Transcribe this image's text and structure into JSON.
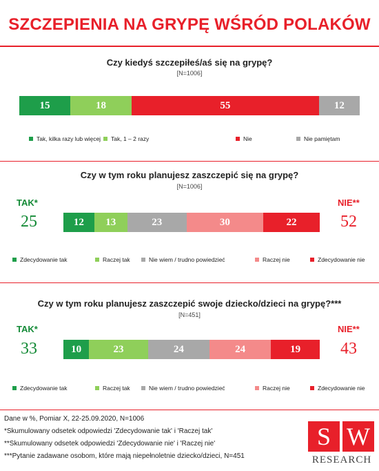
{
  "title": "SZCZEPIENIA NA GRYPĘ WŚRÓD POLAKÓW",
  "colors": {
    "dark_green": "#1e9e4a",
    "light_green": "#8fcf5a",
    "grey": "#a8a8a8",
    "light_red": "#f48a8a",
    "red": "#e8202a",
    "brand_red": "#e8202a"
  },
  "chart_data": [
    {
      "type": "bar",
      "orientation": "horizontal-stacked",
      "title": "Czy kiedyś szczepiłeś/aś się na grypę?",
      "subtitle": "[N=1006]",
      "series": [
        {
          "name": "Tak, kilka razy lub więcej",
          "value": 15,
          "color": "#1e9e4a"
        },
        {
          "name": "Tak, 1 – 2 razy",
          "value": 18,
          "color": "#8fcf5a"
        },
        {
          "name": "Nie",
          "value": 55,
          "color": "#e8202a"
        },
        {
          "name": "Nie pamiętam",
          "value": 12,
          "color": "#a8a8a8"
        }
      ]
    },
    {
      "type": "bar",
      "orientation": "horizontal-stacked",
      "title": "Czy w tym roku planujesz zaszczepić się na grypę?",
      "subtitle": "[N=1006]",
      "left_label": "TAK*",
      "left_value": "25",
      "right_label": "NIE**",
      "right_value": "52",
      "series": [
        {
          "name": "Zdecydowanie tak",
          "value": 12,
          "color": "#1e9e4a"
        },
        {
          "name": "Raczej tak",
          "value": 13,
          "color": "#8fcf5a"
        },
        {
          "name": "Nie wiem / trudno powiedzieć",
          "value": 23,
          "color": "#a8a8a8"
        },
        {
          "name": "Raczej nie",
          "value": 30,
          "color": "#f48a8a"
        },
        {
          "name": "Zdecydowanie nie",
          "value": 22,
          "color": "#e8202a"
        }
      ]
    },
    {
      "type": "bar",
      "orientation": "horizontal-stacked",
      "title": "Czy w tym roku planujesz zaszczepić swoje dziecko/dzieci na grypę?***",
      "subtitle": "[N=451]",
      "left_label": "TAK*",
      "left_value": "33",
      "right_label": "NIE**",
      "right_value": "43",
      "series": [
        {
          "name": "Zdecydowanie tak",
          "value": 10,
          "color": "#1e9e4a"
        },
        {
          "name": "Raczej tak",
          "value": 23,
          "color": "#8fcf5a"
        },
        {
          "name": "Nie wiem / trudno powiedzieć",
          "value": 24,
          "color": "#a8a8a8"
        },
        {
          "name": "Raczej nie",
          "value": 24,
          "color": "#f48a8a"
        },
        {
          "name": "Zdecydowanie nie",
          "value": 19,
          "color": "#e8202a"
        }
      ]
    }
  ],
  "footer": {
    "line1": "Dane w %, Pomiar X, 22-25.09.2020, N=1006",
    "line2": "*Skumulowany odsetek odpowiedzi 'Zdecydowanie tak' i 'Raczej tak'",
    "line3": "**Skumulowany odsetek odpowiedzi 'Zdecydowanie nie' i 'Raczej nie'",
    "line4": "***Pytanie zadawane osobom, które mają niepełnoletnie dziecko/dzieci, N=451"
  },
  "logo": {
    "letter1": "S",
    "letter2": "W",
    "text": "RESEARCH"
  }
}
